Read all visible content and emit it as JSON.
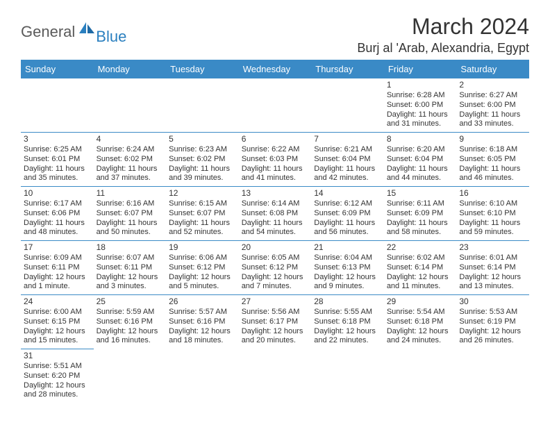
{
  "logo": {
    "main": "General",
    "sub": "Blue"
  },
  "title": "March 2024",
  "location": "Burj al 'Arab, Alexandria, Egypt",
  "header_bg": "#3a8ac6",
  "header_fg": "#ffffff",
  "row_border": "#3a8ac6",
  "text_color": "#333333",
  "day_names": [
    "Sunday",
    "Monday",
    "Tuesday",
    "Wednesday",
    "Thursday",
    "Friday",
    "Saturday"
  ],
  "weeks": [
    [
      null,
      null,
      null,
      null,
      null,
      {
        "n": "1",
        "sr": "Sunrise: 6:28 AM",
        "ss": "Sunset: 6:00 PM",
        "d1": "Daylight: 11 hours",
        "d2": "and 31 minutes."
      },
      {
        "n": "2",
        "sr": "Sunrise: 6:27 AM",
        "ss": "Sunset: 6:00 PM",
        "d1": "Daylight: 11 hours",
        "d2": "and 33 minutes."
      }
    ],
    [
      {
        "n": "3",
        "sr": "Sunrise: 6:25 AM",
        "ss": "Sunset: 6:01 PM",
        "d1": "Daylight: 11 hours",
        "d2": "and 35 minutes."
      },
      {
        "n": "4",
        "sr": "Sunrise: 6:24 AM",
        "ss": "Sunset: 6:02 PM",
        "d1": "Daylight: 11 hours",
        "d2": "and 37 minutes."
      },
      {
        "n": "5",
        "sr": "Sunrise: 6:23 AM",
        "ss": "Sunset: 6:02 PM",
        "d1": "Daylight: 11 hours",
        "d2": "and 39 minutes."
      },
      {
        "n": "6",
        "sr": "Sunrise: 6:22 AM",
        "ss": "Sunset: 6:03 PM",
        "d1": "Daylight: 11 hours",
        "d2": "and 41 minutes."
      },
      {
        "n": "7",
        "sr": "Sunrise: 6:21 AM",
        "ss": "Sunset: 6:04 PM",
        "d1": "Daylight: 11 hours",
        "d2": "and 42 minutes."
      },
      {
        "n": "8",
        "sr": "Sunrise: 6:20 AM",
        "ss": "Sunset: 6:04 PM",
        "d1": "Daylight: 11 hours",
        "d2": "and 44 minutes."
      },
      {
        "n": "9",
        "sr": "Sunrise: 6:18 AM",
        "ss": "Sunset: 6:05 PM",
        "d1": "Daylight: 11 hours",
        "d2": "and 46 minutes."
      }
    ],
    [
      {
        "n": "10",
        "sr": "Sunrise: 6:17 AM",
        "ss": "Sunset: 6:06 PM",
        "d1": "Daylight: 11 hours",
        "d2": "and 48 minutes."
      },
      {
        "n": "11",
        "sr": "Sunrise: 6:16 AM",
        "ss": "Sunset: 6:07 PM",
        "d1": "Daylight: 11 hours",
        "d2": "and 50 minutes."
      },
      {
        "n": "12",
        "sr": "Sunrise: 6:15 AM",
        "ss": "Sunset: 6:07 PM",
        "d1": "Daylight: 11 hours",
        "d2": "and 52 minutes."
      },
      {
        "n": "13",
        "sr": "Sunrise: 6:14 AM",
        "ss": "Sunset: 6:08 PM",
        "d1": "Daylight: 11 hours",
        "d2": "and 54 minutes."
      },
      {
        "n": "14",
        "sr": "Sunrise: 6:12 AM",
        "ss": "Sunset: 6:09 PM",
        "d1": "Daylight: 11 hours",
        "d2": "and 56 minutes."
      },
      {
        "n": "15",
        "sr": "Sunrise: 6:11 AM",
        "ss": "Sunset: 6:09 PM",
        "d1": "Daylight: 11 hours",
        "d2": "and 58 minutes."
      },
      {
        "n": "16",
        "sr": "Sunrise: 6:10 AM",
        "ss": "Sunset: 6:10 PM",
        "d1": "Daylight: 11 hours",
        "d2": "and 59 minutes."
      }
    ],
    [
      {
        "n": "17",
        "sr": "Sunrise: 6:09 AM",
        "ss": "Sunset: 6:11 PM",
        "d1": "Daylight: 12 hours",
        "d2": "and 1 minute."
      },
      {
        "n": "18",
        "sr": "Sunrise: 6:07 AM",
        "ss": "Sunset: 6:11 PM",
        "d1": "Daylight: 12 hours",
        "d2": "and 3 minutes."
      },
      {
        "n": "19",
        "sr": "Sunrise: 6:06 AM",
        "ss": "Sunset: 6:12 PM",
        "d1": "Daylight: 12 hours",
        "d2": "and 5 minutes."
      },
      {
        "n": "20",
        "sr": "Sunrise: 6:05 AM",
        "ss": "Sunset: 6:12 PM",
        "d1": "Daylight: 12 hours",
        "d2": "and 7 minutes."
      },
      {
        "n": "21",
        "sr": "Sunrise: 6:04 AM",
        "ss": "Sunset: 6:13 PM",
        "d1": "Daylight: 12 hours",
        "d2": "and 9 minutes."
      },
      {
        "n": "22",
        "sr": "Sunrise: 6:02 AM",
        "ss": "Sunset: 6:14 PM",
        "d1": "Daylight: 12 hours",
        "d2": "and 11 minutes."
      },
      {
        "n": "23",
        "sr": "Sunrise: 6:01 AM",
        "ss": "Sunset: 6:14 PM",
        "d1": "Daylight: 12 hours",
        "d2": "and 13 minutes."
      }
    ],
    [
      {
        "n": "24",
        "sr": "Sunrise: 6:00 AM",
        "ss": "Sunset: 6:15 PM",
        "d1": "Daylight: 12 hours",
        "d2": "and 15 minutes."
      },
      {
        "n": "25",
        "sr": "Sunrise: 5:59 AM",
        "ss": "Sunset: 6:16 PM",
        "d1": "Daylight: 12 hours",
        "d2": "and 16 minutes."
      },
      {
        "n": "26",
        "sr": "Sunrise: 5:57 AM",
        "ss": "Sunset: 6:16 PM",
        "d1": "Daylight: 12 hours",
        "d2": "and 18 minutes."
      },
      {
        "n": "27",
        "sr": "Sunrise: 5:56 AM",
        "ss": "Sunset: 6:17 PM",
        "d1": "Daylight: 12 hours",
        "d2": "and 20 minutes."
      },
      {
        "n": "28",
        "sr": "Sunrise: 5:55 AM",
        "ss": "Sunset: 6:18 PM",
        "d1": "Daylight: 12 hours",
        "d2": "and 22 minutes."
      },
      {
        "n": "29",
        "sr": "Sunrise: 5:54 AM",
        "ss": "Sunset: 6:18 PM",
        "d1": "Daylight: 12 hours",
        "d2": "and 24 minutes."
      },
      {
        "n": "30",
        "sr": "Sunrise: 5:53 AM",
        "ss": "Sunset: 6:19 PM",
        "d1": "Daylight: 12 hours",
        "d2": "and 26 minutes."
      }
    ],
    [
      {
        "n": "31",
        "sr": "Sunrise: 5:51 AM",
        "ss": "Sunset: 6:20 PM",
        "d1": "Daylight: 12 hours",
        "d2": "and 28 minutes."
      },
      null,
      null,
      null,
      null,
      null,
      null
    ]
  ]
}
